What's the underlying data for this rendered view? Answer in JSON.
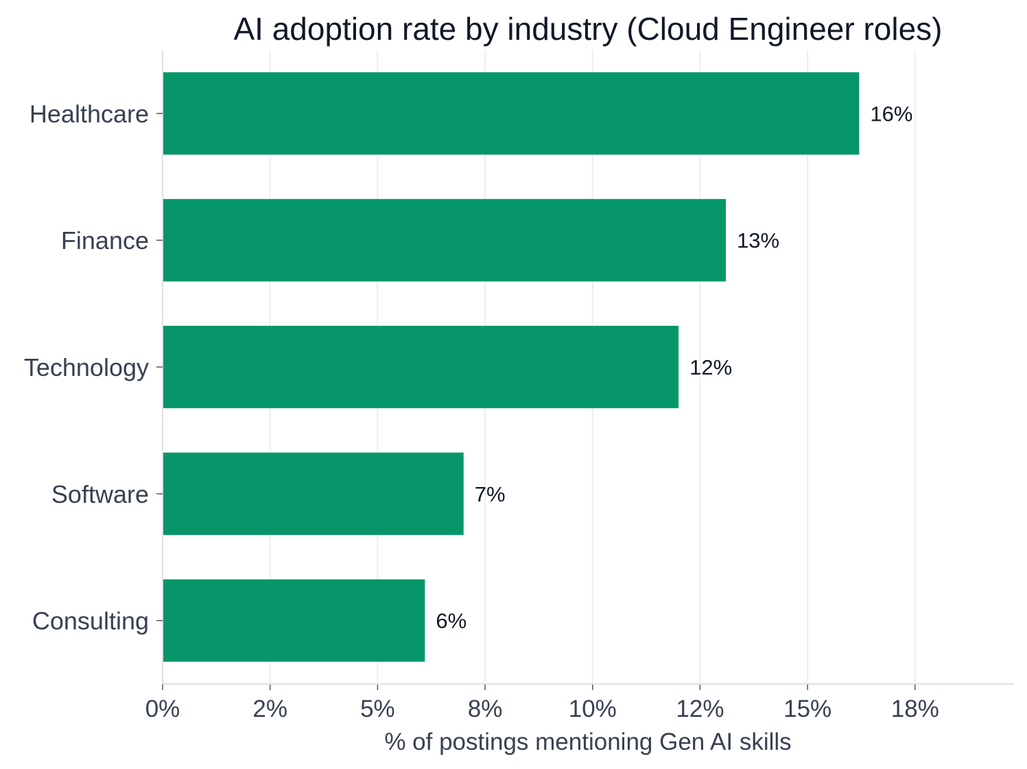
{
  "chart_data": {
    "type": "bar",
    "orientation": "horizontal",
    "title": "AI adoption rate by industry (Cloud Engineer roles)",
    "xlabel": "% of postings mentioning Gen AI skills",
    "ylabel": "",
    "categories": [
      "Healthcare",
      "Finance",
      "Technology",
      "Software",
      "Consulting"
    ],
    "values": [
      16.2,
      13.1,
      12.0,
      7.0,
      6.1
    ],
    "value_labels": [
      "16%",
      "13%",
      "12%",
      "7%",
      "6%"
    ],
    "xlim": [
      0,
      19.8
    ],
    "xticks": [
      0,
      2.5,
      5,
      7.5,
      10,
      12.5,
      15,
      17.5
    ],
    "xtick_labels": [
      "0%",
      "2%",
      "5%",
      "8%",
      "10%",
      "12%",
      "15%",
      "18%"
    ],
    "grid": "vertical",
    "legend": "none",
    "colors": {
      "bar": "#069669",
      "grid": "#eeeeee",
      "axis": "#e0e0e0"
    }
  }
}
